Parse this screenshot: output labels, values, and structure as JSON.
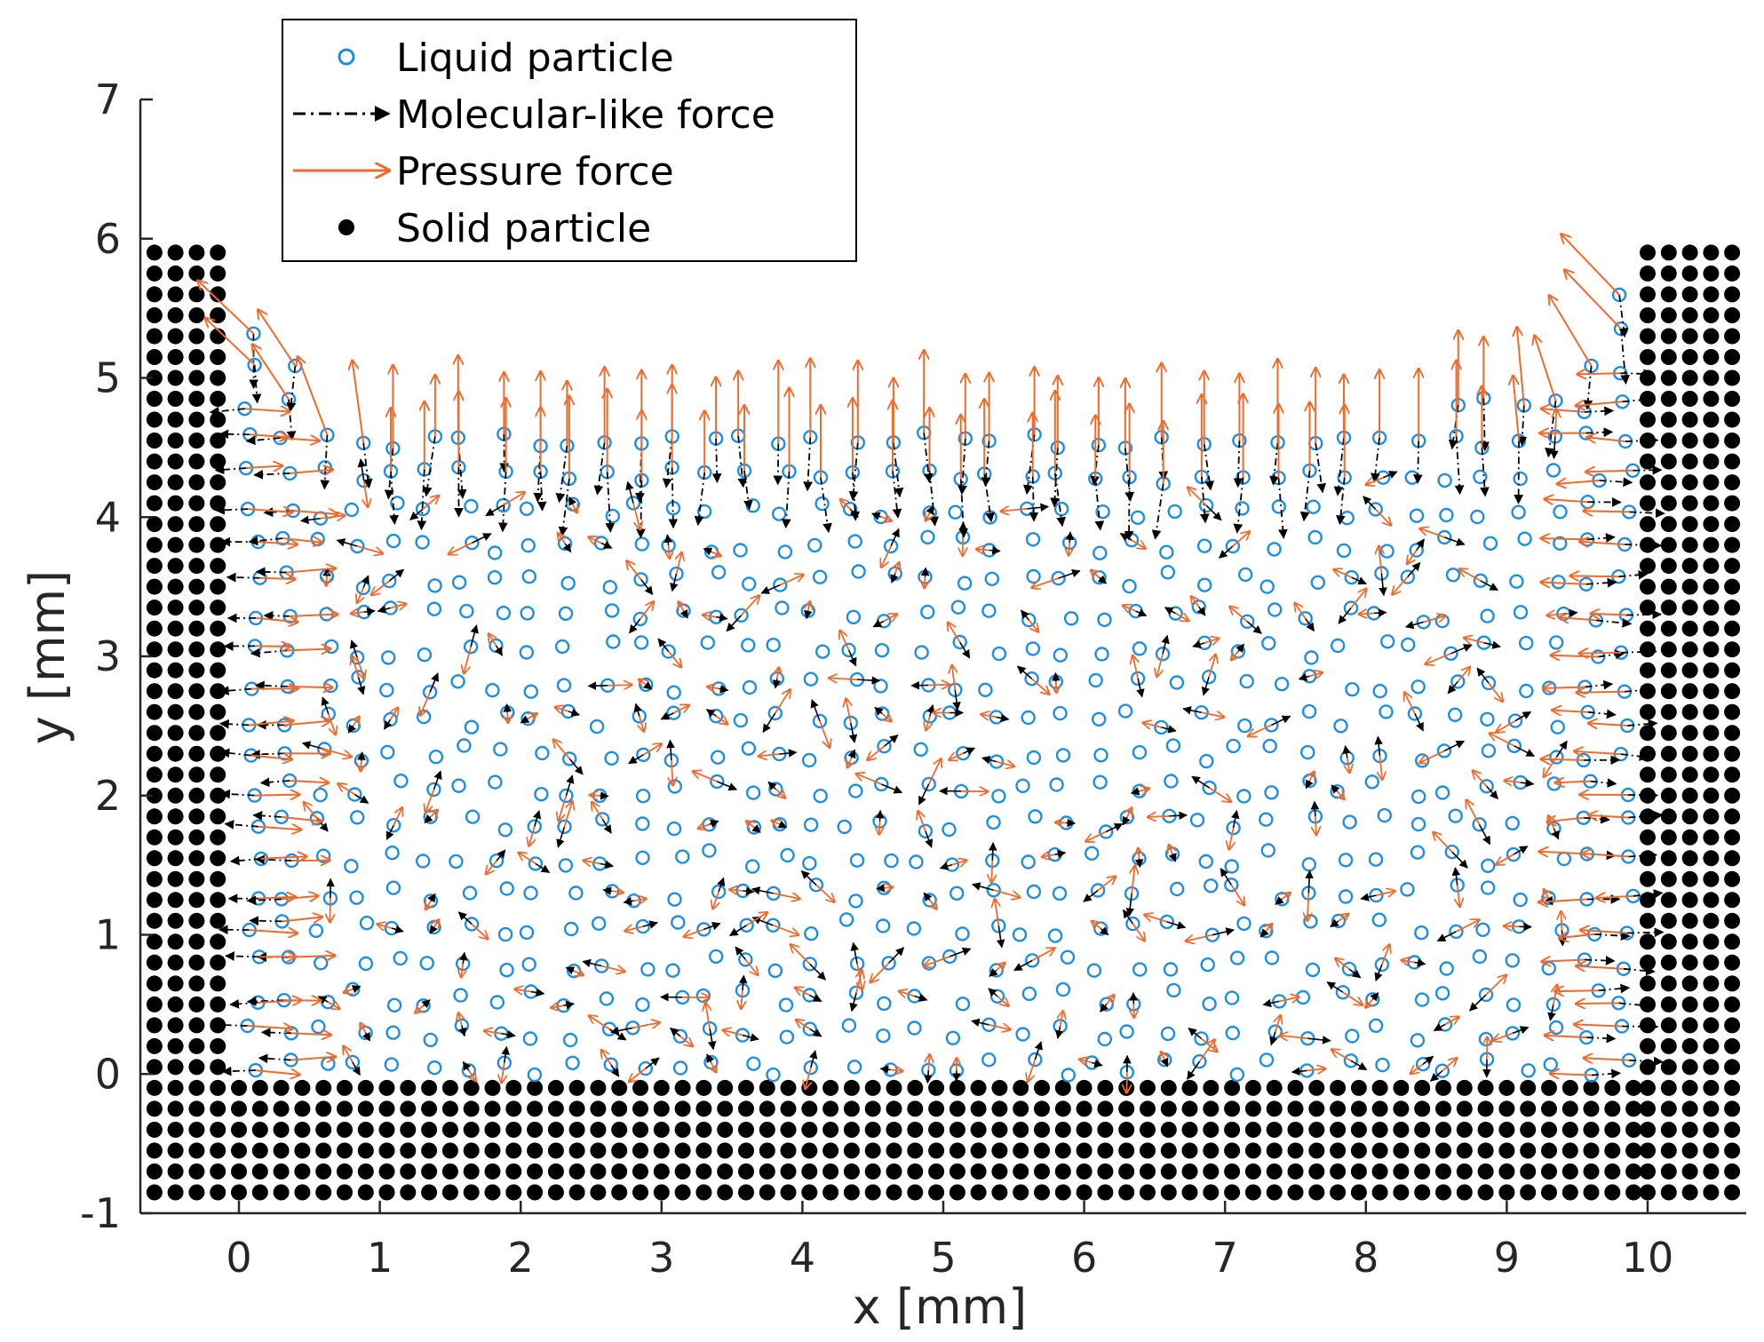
{
  "chart_data": {
    "type": "scatter",
    "title": "",
    "xlabel": "x [mm]",
    "ylabel": "y [mm]",
    "xlim": [
      -0.7,
      10.7
    ],
    "ylim": [
      -1,
      7
    ],
    "xticks": [
      "0",
      "1",
      "2",
      "3",
      "4",
      "5",
      "6",
      "7",
      "8",
      "9",
      "10"
    ],
    "yticks": [
      "-1",
      "0",
      "1",
      "2",
      "3",
      "4",
      "5",
      "6",
      "7"
    ],
    "grid": false,
    "legend": {
      "location": "top-left",
      "entries": [
        {
          "label": "Liquid particle",
          "marker": "open-circle"
        },
        {
          "label": "Molecular-like force",
          "marker": "dash-dot-arrow"
        },
        {
          "label": "Pressure force",
          "marker": "arrow"
        },
        {
          "label": "Solid particle",
          "marker": "filled-circle"
        }
      ]
    },
    "series": [
      {
        "name": "Solid particle",
        "style": "filled-circle",
        "grid_spacing": 0.15,
        "blocks": [
          {
            "name": "left wall",
            "x_range": [
              -0.6,
              -0.15
            ],
            "y_range": [
              -0.85,
              6.0
            ]
          },
          {
            "name": "bottom wall",
            "x_range": [
              0.0,
              10.0
            ],
            "y_range": [
              -0.85,
              -0.1
            ]
          },
          {
            "name": "right wall",
            "x_range": [
              10.0,
              10.6
            ],
            "y_range": [
              -0.85,
              6.0
            ]
          }
        ]
      },
      {
        "name": "Liquid particle",
        "style": "open-circle",
        "domain": {
          "x_range": [
            0.1,
            9.9
          ],
          "y_range": [
            0.05,
            4.5
          ]
        },
        "spacing": 0.25,
        "free_surface": {
          "description": "meniscus rising toward both walls",
          "x": [
            0.2,
            0.5,
            1,
            2,
            3,
            4,
            5,
            6,
            7,
            8,
            9,
            9.5,
            9.8
          ],
          "y": [
            5.4,
            4.8,
            4.7,
            4.6,
            4.6,
            4.6,
            4.55,
            4.55,
            4.6,
            4.7,
            4.9,
            5.1,
            5.6
          ]
        }
      },
      {
        "name": "Pressure force",
        "style": "arrow",
        "note": "Outward-normal arrows along the free surface; short random arrows in the bulk",
        "surface_arrow_length": 0.55
      },
      {
        "name": "Molecular-like force",
        "style": "dash-dot-arrow",
        "note": "Inward (downward) arrows below the free surface; short random arrows in the bulk",
        "surface_arrow_length": 0.45
      }
    ]
  },
  "colors": {
    "liquid": "#1f8ee0",
    "pressure": "#f06a2c",
    "molecular": "#000000",
    "solid": "#000000",
    "axis": "#262626"
  }
}
